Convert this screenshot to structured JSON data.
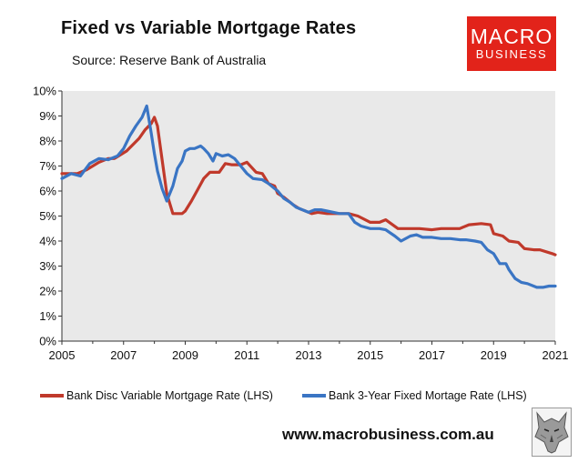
{
  "title": "Fixed vs Variable Mortgage Rates",
  "subtitle": "Source: Reserve Bank of Australia",
  "logo": {
    "line1": "MACRO",
    "line2": "BUSINESS"
  },
  "website": "www.macrobusiness.com.au",
  "colors": {
    "variable": "#c0392b",
    "fixed": "#3a75c4",
    "plot_bg": "#e9e9e9",
    "logo_bg": "#e2231a"
  },
  "chart_data": {
    "type": "line",
    "title": "Fixed vs Variable Mortgage Rates",
    "subtitle": "Source: Reserve Bank of Australia",
    "xlabel": "",
    "ylabel": "",
    "xlim": [
      2005,
      2021
    ],
    "ylim": [
      0,
      10
    ],
    "xticks": [
      "2005",
      "2007",
      "2009",
      "2011",
      "2013",
      "2015",
      "2017",
      "2019",
      "2021"
    ],
    "yticks": [
      "0%",
      "1%",
      "2%",
      "3%",
      "4%",
      "5%",
      "6%",
      "7%",
      "8%",
      "9%",
      "10%"
    ],
    "grid": false,
    "legend": "bottom",
    "series": [
      {
        "name": "Bank Disc Variable Mortgage Rate (LHS)",
        "color": "#c0392b",
        "x": [
          2005.0,
          2005.5,
          2005.8,
          2006.0,
          2006.2,
          2006.5,
          2006.7,
          2006.9,
          2007.1,
          2007.3,
          2007.5,
          2007.7,
          2007.9,
          2008.0,
          2008.1,
          2008.2,
          2008.3,
          2008.4,
          2008.6,
          2008.9,
          2009.0,
          2009.2,
          2009.4,
          2009.6,
          2009.8,
          2010.0,
          2010.1,
          2010.3,
          2010.5,
          2010.6,
          2010.8,
          2011.0,
          2011.3,
          2011.5,
          2011.7,
          2011.9,
          2012.0,
          2012.2,
          2012.4,
          2012.5,
          2012.7,
          2012.9,
          2013.1,
          2013.3,
          2013.6,
          2014.0,
          2014.3,
          2014.6,
          2015.0,
          2015.3,
          2015.5,
          2015.9,
          2016.0,
          2016.3,
          2016.6,
          2017.0,
          2017.3,
          2017.6,
          2017.9,
          2018.2,
          2018.6,
          2018.9,
          2019.0,
          2019.3,
          2019.5,
          2019.8,
          2020.0,
          2020.3,
          2020.5,
          2020.9,
          2021.0
        ],
        "values": [
          6.7,
          6.7,
          6.85,
          7.0,
          7.15,
          7.3,
          7.3,
          7.45,
          7.6,
          7.85,
          8.1,
          8.45,
          8.7,
          8.95,
          8.6,
          7.7,
          6.8,
          5.9,
          5.1,
          5.1,
          5.2,
          5.6,
          6.05,
          6.5,
          6.75,
          6.75,
          6.75,
          7.1,
          7.05,
          7.05,
          7.05,
          7.15,
          6.75,
          6.7,
          6.3,
          6.2,
          5.9,
          5.75,
          5.55,
          5.45,
          5.3,
          5.2,
          5.1,
          5.15,
          5.1,
          5.1,
          5.1,
          5.0,
          4.75,
          4.75,
          4.85,
          4.5,
          4.5,
          4.5,
          4.5,
          4.45,
          4.5,
          4.5,
          4.5,
          4.65,
          4.7,
          4.65,
          4.3,
          4.2,
          4.0,
          3.95,
          3.7,
          3.65,
          3.65,
          3.5,
          3.45
        ]
      },
      {
        "name": "Bank 3-Year Fixed Mortage Rate (LHS)",
        "color": "#3a75c4",
        "x": [
          2005.0,
          2005.3,
          2005.6,
          2005.9,
          2006.2,
          2006.5,
          2006.8,
          2007.0,
          2007.2,
          2007.4,
          2007.6,
          2007.75,
          2007.9,
          2008.0,
          2008.1,
          2008.25,
          2008.4,
          2008.6,
          2008.75,
          2008.9,
          2009.0,
          2009.15,
          2009.3,
          2009.5,
          2009.6,
          2009.75,
          2009.9,
          2010.0,
          2010.2,
          2010.4,
          2010.6,
          2010.8,
          2011.0,
          2011.2,
          2011.5,
          2011.7,
          2011.9,
          2012.0,
          2012.2,
          2012.4,
          2012.6,
          2012.8,
          2013.0,
          2013.2,
          2013.4,
          2013.6,
          2014.0,
          2014.3,
          2014.5,
          2014.7,
          2015.0,
          2015.3,
          2015.5,
          2015.8,
          2016.0,
          2016.3,
          2016.5,
          2016.7,
          2017.0,
          2017.3,
          2017.6,
          2017.9,
          2018.1,
          2018.4,
          2018.6,
          2018.8,
          2019.0,
          2019.2,
          2019.4,
          2019.5,
          2019.7,
          2019.9,
          2020.1,
          2020.4,
          2020.6,
          2020.8,
          2021.0
        ],
        "values": [
          6.5,
          6.7,
          6.6,
          7.1,
          7.3,
          7.25,
          7.4,
          7.7,
          8.2,
          8.6,
          8.95,
          9.4,
          8.3,
          7.5,
          6.8,
          6.1,
          5.6,
          6.2,
          6.9,
          7.2,
          7.6,
          7.7,
          7.7,
          7.8,
          7.7,
          7.5,
          7.2,
          7.5,
          7.4,
          7.45,
          7.3,
          7.0,
          6.7,
          6.5,
          6.45,
          6.3,
          6.1,
          6.0,
          5.7,
          5.55,
          5.35,
          5.25,
          5.15,
          5.25,
          5.25,
          5.2,
          5.1,
          5.1,
          4.75,
          4.6,
          4.5,
          4.5,
          4.45,
          4.2,
          4.0,
          4.2,
          4.25,
          4.15,
          4.15,
          4.1,
          4.1,
          4.05,
          4.05,
          4.0,
          3.95,
          3.65,
          3.5,
          3.1,
          3.1,
          2.85,
          2.5,
          2.35,
          2.3,
          2.15,
          2.15,
          2.2,
          2.2
        ]
      }
    ]
  }
}
